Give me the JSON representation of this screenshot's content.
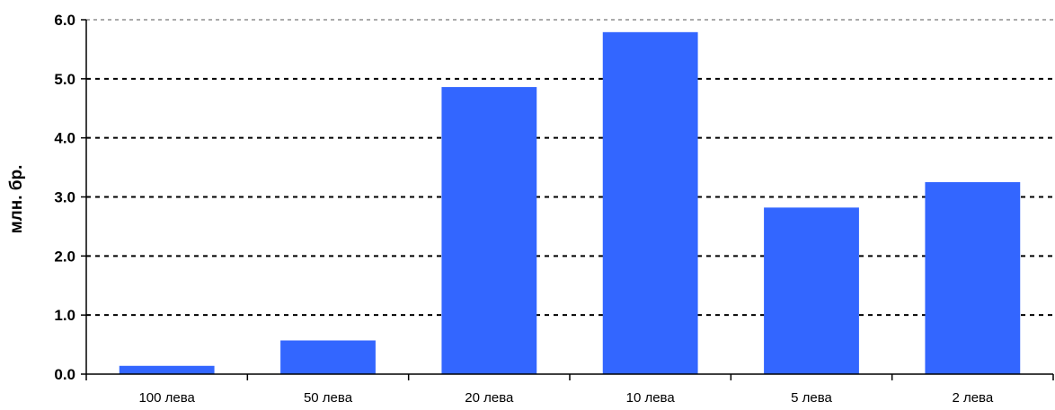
{
  "chart_data": {
    "type": "bar",
    "title": "",
    "xlabel": "",
    "ylabel": "млн. бр.",
    "categories": [
      "100 лева",
      "50 лева",
      "20 лева",
      "10 лева",
      "5 лева",
      "2 лева"
    ],
    "values": [
      0.14,
      0.57,
      4.86,
      5.79,
      2.82,
      3.25
    ],
    "ylim": [
      0,
      6
    ],
    "yticks": [
      "0.0",
      "1.0",
      "2.0",
      "3.0",
      "4.0",
      "5.0",
      "6.0"
    ],
    "grid": true,
    "bar_color": "#3366ff"
  }
}
